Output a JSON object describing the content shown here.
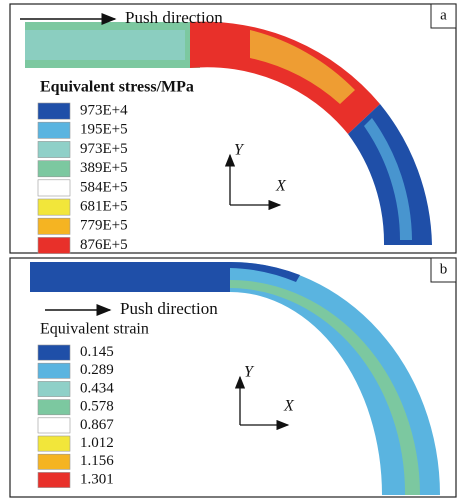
{
  "panels": [
    {
      "label": "a",
      "push_direction": "Push direction",
      "legend_title": "Equivalent stress/MPa",
      "legend": [
        {
          "label": "973E+4",
          "color": "#1f4fa8"
        },
        {
          "label": "195E+5",
          "color": "#5ab4e0"
        },
        {
          "label": "973E+5",
          "color": "#8fd0c8"
        },
        {
          "label": "389E+5",
          "color": "#7cc8a0"
        },
        {
          "label": "584E+5",
          "color": "#ffffff"
        },
        {
          "label": "681E+5",
          "color": "#f2e63a"
        },
        {
          "label": "779E+5",
          "color": "#f5b422"
        },
        {
          "label": "876E+5",
          "color": "#e8302a"
        }
      ],
      "axis_y": "Y",
      "axis_x": "X"
    },
    {
      "label": "b",
      "push_direction": "Push direction",
      "legend_title": "Equivalent strain",
      "legend": [
        {
          "label": "0.145",
          "color": "#1f4fa8"
        },
        {
          "label": "0.289",
          "color": "#5ab4e0"
        },
        {
          "label": "0.434",
          "color": "#8fd0c8"
        },
        {
          "label": "0.578",
          "color": "#7cc8a0"
        },
        {
          "label": "0.867",
          "color": "#ffffff"
        },
        {
          "label": "1.012",
          "color": "#f2e63a"
        },
        {
          "label": "1.156",
          "color": "#f5b422"
        },
        {
          "label": "1.301",
          "color": "#e8302a"
        }
      ],
      "axis_y": "Y",
      "axis_x": "X"
    }
  ]
}
